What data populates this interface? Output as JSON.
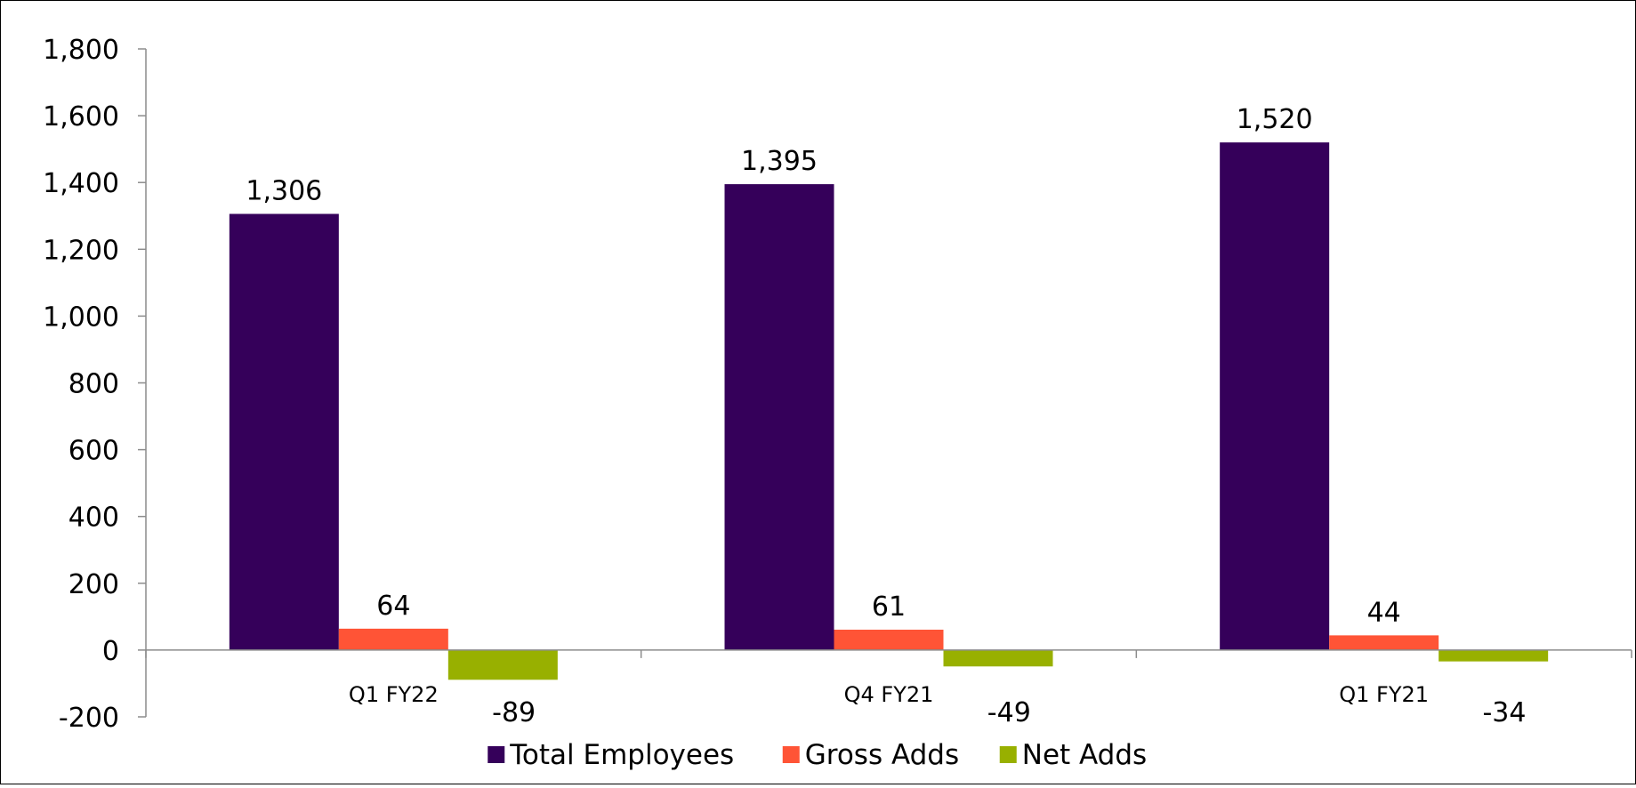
{
  "chart_data": {
    "type": "bar",
    "categories": [
      "Q1 FY22",
      "Q4 FY21",
      "Q1 FY21"
    ],
    "series": [
      {
        "name": "Total Employees",
        "color": "#35005a",
        "values": [
          1306,
          1395,
          1520
        ],
        "labels": [
          "1,306",
          "1,395",
          "1,520"
        ]
      },
      {
        "name": "Gross Adds",
        "color": "#ff5436",
        "values": [
          64,
          61,
          44
        ],
        "labels": [
          "64",
          "61",
          "44"
        ]
      },
      {
        "name": "Net Adds",
        "color": "#98b000",
        "values": [
          -89,
          -49,
          -34
        ],
        "labels": [
          "-89",
          "-49",
          "-34"
        ]
      }
    ],
    "yticks": [
      -200,
      0,
      200,
      400,
      600,
      800,
      1000,
      1200,
      1400,
      1600,
      1800
    ],
    "ytick_labels": [
      "-200",
      "0",
      "200",
      "400",
      "600",
      "800",
      "1,000",
      "1,200",
      "1,400",
      "1,600",
      "1,800"
    ],
    "ylim": [
      -200,
      1800
    ],
    "title": "",
    "xlabel": "",
    "ylabel": "",
    "grid": false,
    "legend_position": "bottom"
  }
}
